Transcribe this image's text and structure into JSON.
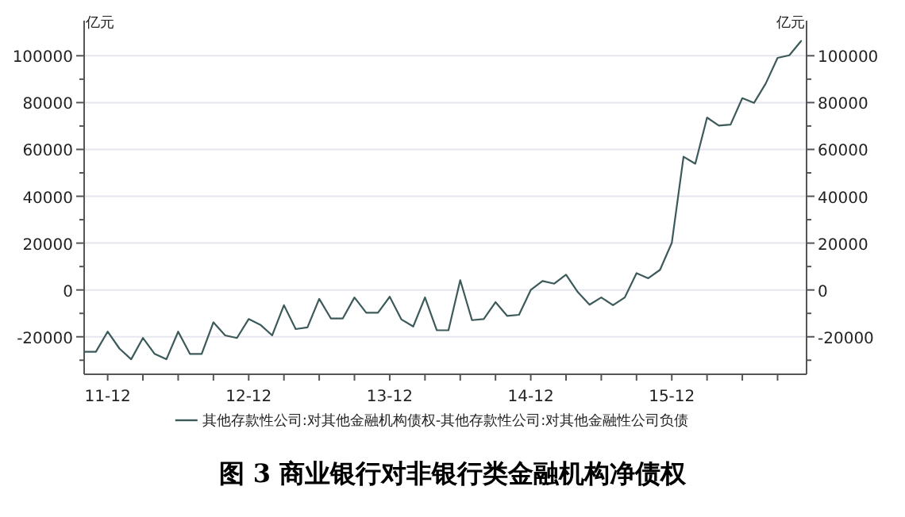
{
  "chart_data": {
    "type": "line",
    "title": "图 3  商业银行对非银行类金融机构净债权",
    "ylabel": "亿元",
    "y2label": "亿元",
    "x": [
      "2011-10",
      "2011-11",
      "2011-12",
      "2012-01",
      "2012-02",
      "2012-03",
      "2012-04",
      "2012-05",
      "2012-06",
      "2012-07",
      "2012-08",
      "2012-09",
      "2012-10",
      "2012-11",
      "2012-12",
      "2013-01",
      "2013-02",
      "2013-03",
      "2013-04",
      "2013-05",
      "2013-06",
      "2013-07",
      "2013-08",
      "2013-09",
      "2013-10",
      "2013-11",
      "2013-12",
      "2014-01",
      "2014-02",
      "2014-03",
      "2014-04",
      "2014-05",
      "2014-06",
      "2014-07",
      "2014-08",
      "2014-09",
      "2014-10",
      "2014-11",
      "2014-12",
      "2015-01",
      "2015-02",
      "2015-03",
      "2015-04",
      "2015-05",
      "2015-06",
      "2015-07",
      "2015-08",
      "2015-09",
      "2015-10",
      "2015-11",
      "2015-12",
      "2016-01",
      "2016-02",
      "2016-03",
      "2016-04",
      "2016-05",
      "2016-06",
      "2016-07",
      "2016-08",
      "2016-09",
      "2016-10",
      "2016-11"
    ],
    "series": [
      {
        "name": "其他存款性公司:对其他金融机构债权-其他存款性公司:对其他金融性公司负债",
        "color": "#3d5a5a",
        "values": [
          -26400,
          -26400,
          -17800,
          -25000,
          -29600,
          -20500,
          -27300,
          -29600,
          -17800,
          -27300,
          -27300,
          -13800,
          -19400,
          -20500,
          -12400,
          -14900,
          -19400,
          -6500,
          -16700,
          -16000,
          -3800,
          -12200,
          -12200,
          -3200,
          -9700,
          -9700,
          -2900,
          -12600,
          -15600,
          -3200,
          -17200,
          -17200,
          4200,
          -12900,
          -12400,
          -5200,
          -11100,
          -10600,
          0,
          3800,
          2700,
          6500,
          -900,
          -6300,
          -3200,
          -6500,
          -3200,
          7200,
          5000,
          8600,
          20100,
          56900,
          53900,
          73600,
          70200,
          70600,
          81900,
          79900,
          88200,
          99100,
          100200,
          106300
        ]
      }
    ],
    "xlim": [
      "2011-10",
      "2016-11-15"
    ],
    "xticks": [
      {
        "value": "2011-12",
        "label": "11-12"
      },
      {
        "value": "2012-03",
        "label": null
      },
      {
        "value": "2012-06",
        "label": null
      },
      {
        "value": "2012-09",
        "label": null
      },
      {
        "value": "2012-12",
        "label": "12-12"
      },
      {
        "value": "2013-03",
        "label": null
      },
      {
        "value": "2013-06",
        "label": null
      },
      {
        "value": "2013-09",
        "label": null
      },
      {
        "value": "2013-12",
        "label": "13-12"
      },
      {
        "value": "2014-03",
        "label": null
      },
      {
        "value": "2014-06",
        "label": null
      },
      {
        "value": "2014-09",
        "label": null
      },
      {
        "value": "2014-12",
        "label": "14-12"
      },
      {
        "value": "2015-03",
        "label": null
      },
      {
        "value": "2015-06",
        "label": null
      },
      {
        "value": "2015-09",
        "label": null
      },
      {
        "value": "2015-12",
        "label": "15-12"
      },
      {
        "value": "2016-03",
        "label": null
      },
      {
        "value": "2016-06",
        "label": null
      },
      {
        "value": "2016-09",
        "label": null
      }
    ],
    "ylim": [
      -36000,
      115000
    ],
    "yticks": [
      {
        "value": -30000,
        "label": null
      },
      -20000,
      {
        "value": -10000,
        "label": null
      },
      0,
      {
        "value": 10000,
        "label": null
      },
      20000,
      {
        "value": 30000,
        "label": null
      },
      40000,
      {
        "value": 50000,
        "label": null
      },
      60000,
      {
        "value": 70000,
        "label": null
      },
      80000,
      {
        "value": 90000,
        "label": null
      },
      100000
    ],
    "y2lim": [
      -36000,
      115000
    ],
    "y2ticks": [
      {
        "value": -30000,
        "label": null
      },
      -20000,
      {
        "value": -10000,
        "label": null
      },
      0,
      {
        "value": 10000,
        "label": null
      },
      20000,
      {
        "value": 30000,
        "label": null
      },
      40000,
      {
        "value": 50000,
        "label": null
      },
      60000,
      {
        "value": 70000,
        "label": null
      },
      80000,
      {
        "value": 90000,
        "label": null
      },
      100000
    ],
    "grid": "y",
    "legend": "bottom",
    "marker": "none",
    "line_style": "solid"
  }
}
